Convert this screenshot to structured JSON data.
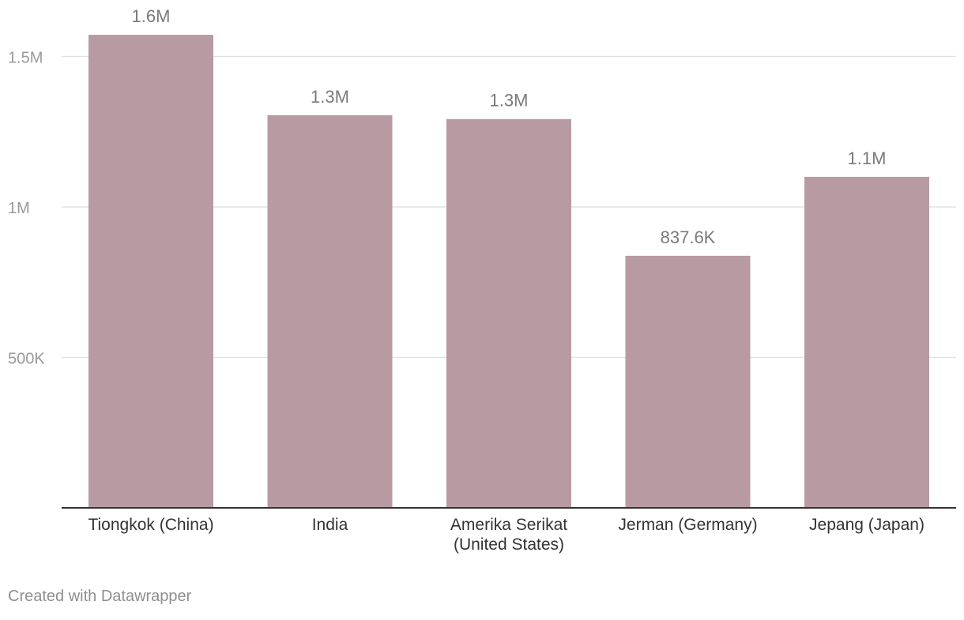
{
  "chart_data": {
    "type": "bar",
    "title": "",
    "xlabel": "",
    "ylabel": "",
    "categories": [
      [
        "Tiongkok (China)"
      ],
      [
        "India"
      ],
      [
        "Amerika Serikat",
        "(United States)"
      ],
      [
        "Jerman (Germany)"
      ],
      [
        "Jepang (Japan)"
      ]
    ],
    "values": [
      1572000,
      1305000,
      1292000,
      837600,
      1100000
    ],
    "value_labels": [
      "1.6M",
      "1.3M",
      "1.3M",
      "837.6K",
      "1.1M"
    ],
    "ylim": [
      0,
      1500000
    ],
    "yticks": [
      {
        "value": 500000,
        "label": "500K"
      },
      {
        "value": 1000000,
        "label": "1M"
      },
      {
        "value": 1500000,
        "label": "1.5M"
      }
    ],
    "grid": true
  },
  "footer": {
    "credit": "Created with Datawrapper"
  },
  "colors": {
    "bar": "#b89aa3",
    "grid": "#e2e2e2",
    "axis": "#333333",
    "tick_label": "#9a9a9a",
    "value_label": "#7a7a7a",
    "category_label": "#333333"
  }
}
